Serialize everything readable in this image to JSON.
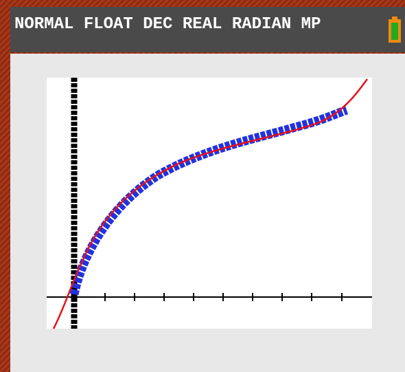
{
  "status_bar": {
    "text": "NORMAL FLOAT DEC REAL RADIAN MP"
  }
}
